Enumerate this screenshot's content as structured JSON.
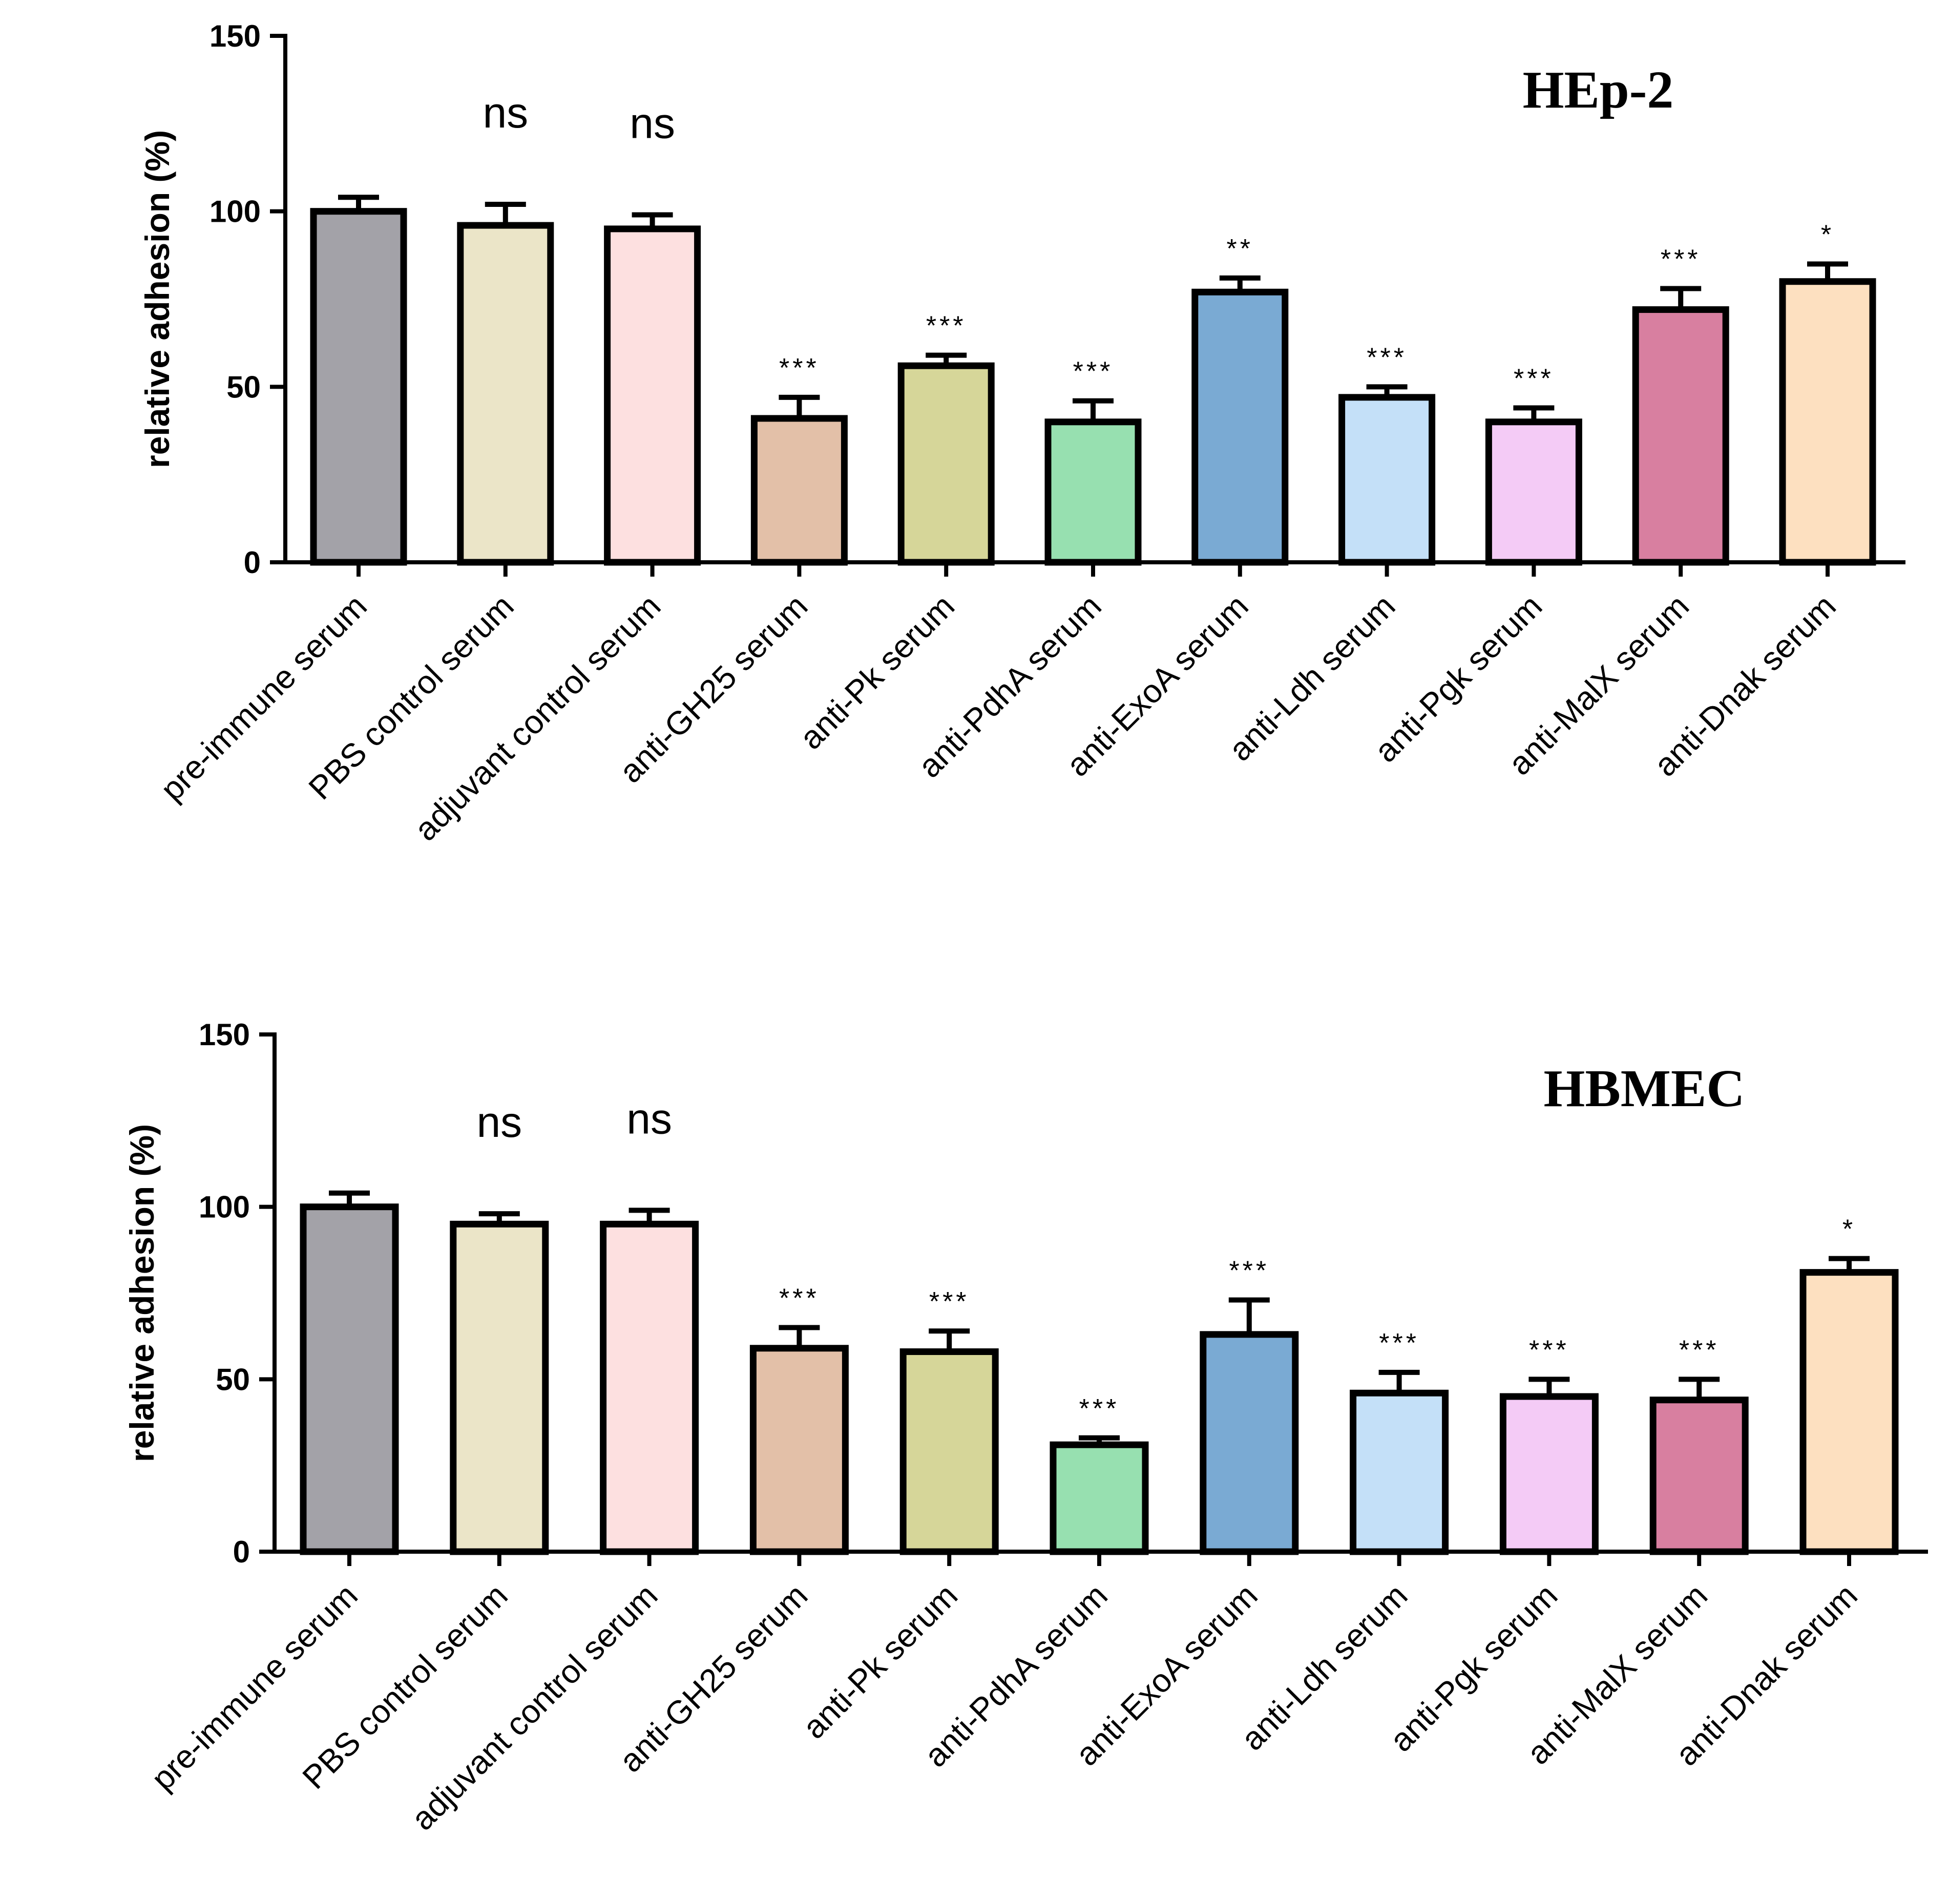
{
  "chart_data": [
    {
      "type": "bar",
      "title": "HEp-2",
      "xlabel": "",
      "ylabel": "relative adhesion (%)",
      "ylim": [
        0,
        150
      ],
      "yticks": [
        0,
        50,
        100,
        150
      ],
      "grid": false,
      "categories": [
        "pre-immune serum",
        "PBS control serum",
        "adjuvant control serum",
        "anti-GH25 serum",
        "anti-Pk serum",
        "anti-PdhA serum",
        "anti-ExoA serum",
        "anti-Ldh serum",
        "anti-Pgk serum",
        "anti-MalX serum",
        "anti-Dnak serum"
      ],
      "values": [
        100,
        96,
        95,
        41,
        56,
        40,
        77,
        47,
        40,
        72,
        80
      ],
      "errors": [
        4,
        6,
        4,
        6,
        3,
        6,
        4,
        3,
        4,
        6,
        5
      ],
      "significance": [
        "",
        "ns",
        "ns",
        "***",
        "***",
        "***",
        "**",
        "***",
        "***",
        "***",
        "*"
      ],
      "colors": [
        "#a3a2a8",
        "#ebe5c8",
        "#fde0e0",
        "#e3c0a8",
        "#d6d699",
        "#97e0b0",
        "#7aaad3",
        "#c4e0f8",
        "#f4cbf6",
        "#d87fa0",
        "#fde0c0"
      ]
    },
    {
      "type": "bar",
      "title": "HBMEC",
      "xlabel": "",
      "ylabel": "relative adhesion (%)",
      "ylim": [
        0,
        150
      ],
      "yticks": [
        0,
        50,
        100,
        150
      ],
      "grid": false,
      "categories": [
        "pre-immune serum",
        "PBS control serum",
        "adjuvant control serum",
        "anti-GH25 serum",
        "anti-Pk serum",
        "anti-PdhA serum",
        "anti-ExoA serum",
        "anti-Ldh serum",
        "anti-Pgk serum",
        "anti-MalX serum",
        "anti-Dnak serum"
      ],
      "values": [
        100,
        95,
        95,
        59,
        58,
        31,
        63,
        46,
        45,
        44,
        81
      ],
      "errors": [
        4,
        3,
        4,
        6,
        6,
        2,
        10,
        6,
        5,
        6,
        4
      ],
      "significance": [
        "",
        "ns",
        "ns",
        "***",
        "***",
        "***",
        "***",
        "***",
        "***",
        "***",
        "*"
      ],
      "colors": [
        "#a3a2a8",
        "#ebe5c8",
        "#fde0e0",
        "#e3c0a8",
        "#d6d699",
        "#97e0b0",
        "#7aaad3",
        "#c4e0f8",
        "#f4cbf6",
        "#d87fa0",
        "#fde0c0"
      ]
    }
  ]
}
